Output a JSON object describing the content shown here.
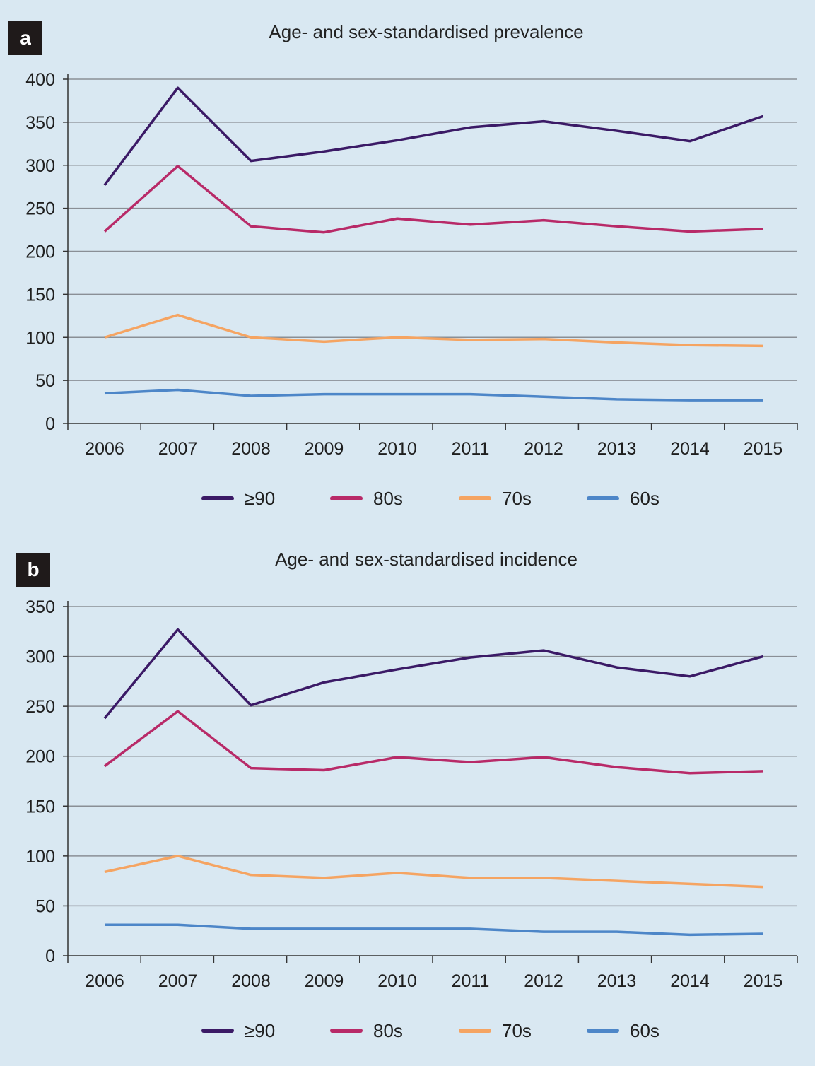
{
  "panels": [
    {
      "badge": "a",
      "title": "Age- and sex-standardised prevalence"
    },
    {
      "badge": "b",
      "title": "Age- and sex-standardised incidence"
    }
  ],
  "chart_data": [
    {
      "type": "line",
      "title": "Age- and sex-standardised prevalence",
      "xlabel": "",
      "ylabel": "",
      "x": [
        "2006",
        "2007",
        "2008",
        "2009",
        "2010",
        "2011",
        "2012",
        "2013",
        "2014",
        "2015"
      ],
      "yticks": [
        0,
        50,
        100,
        150,
        200,
        250,
        300,
        350,
        400
      ],
      "ylim": [
        0,
        400
      ],
      "grid": true,
      "legend": "bottom",
      "series": [
        {
          "name": "≥90",
          "color": "#3b1a66",
          "values": [
            277,
            390,
            305,
            316,
            329,
            344,
            351,
            340,
            328,
            357
          ]
        },
        {
          "name": "80s",
          "color": "#b82a68",
          "values": [
            223,
            299,
            229,
            222,
            238,
            231,
            236,
            229,
            223,
            226
          ]
        },
        {
          "name": "70s",
          "color": "#f5a462",
          "values": [
            100,
            126,
            100,
            95,
            100,
            97,
            98,
            94,
            91,
            90
          ]
        },
        {
          "name": "60s",
          "color": "#4d86c8",
          "values": [
            35,
            39,
            32,
            34,
            34,
            34,
            31,
            28,
            27,
            27
          ]
        }
      ]
    },
    {
      "type": "line",
      "title": "Age- and sex-standardised incidence",
      "xlabel": "",
      "ylabel": "",
      "x": [
        "2006",
        "2007",
        "2008",
        "2009",
        "2010",
        "2011",
        "2012",
        "2013",
        "2014",
        "2015"
      ],
      "yticks": [
        0,
        50,
        100,
        150,
        200,
        250,
        300,
        350
      ],
      "ylim": [
        0,
        350
      ],
      "grid": true,
      "legend": "bottom",
      "series": [
        {
          "name": "≥90",
          "color": "#3b1a66",
          "values": [
            238,
            327,
            251,
            274,
            287,
            299,
            306,
            289,
            280,
            300
          ]
        },
        {
          "name": "80s",
          "color": "#b82a68",
          "values": [
            190,
            245,
            188,
            186,
            199,
            194,
            199,
            189,
            183,
            185
          ]
        },
        {
          "name": "70s",
          "color": "#f5a462",
          "values": [
            84,
            100,
            81,
            78,
            83,
            78,
            78,
            75,
            72,
            69
          ]
        },
        {
          "name": "60s",
          "color": "#4d86c8",
          "values": [
            31,
            31,
            27,
            27,
            27,
            27,
            24,
            24,
            21,
            22
          ]
        }
      ]
    }
  ]
}
